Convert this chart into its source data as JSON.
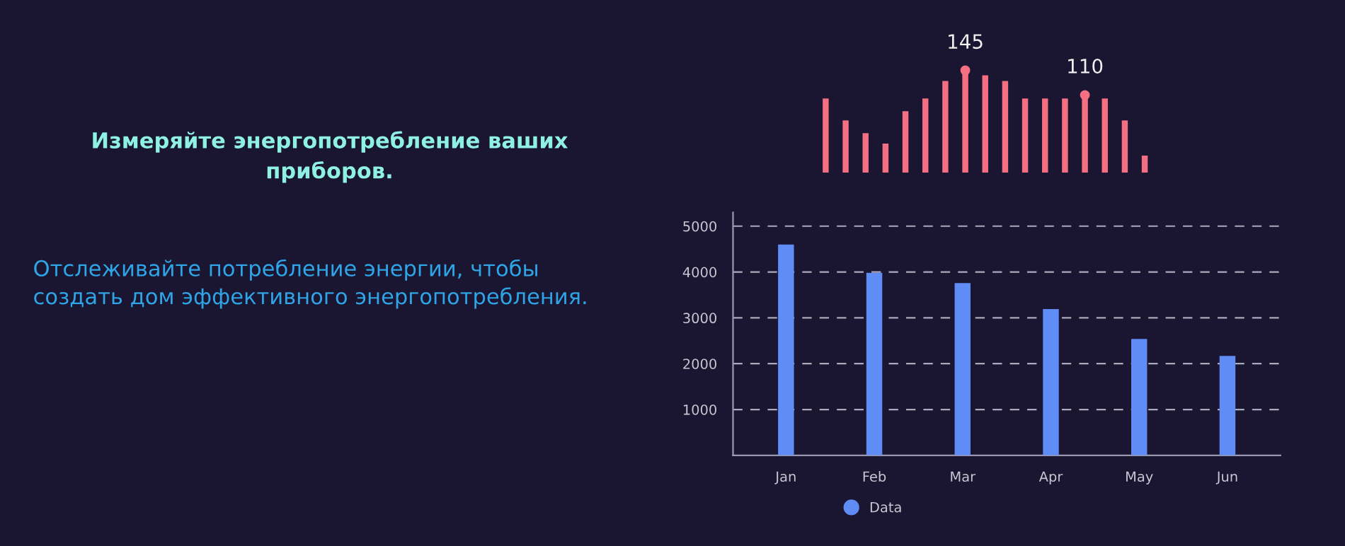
{
  "chart_data": [
    {
      "type": "other",
      "title": "Измеряйте энергопотребление ваших\nприборов.",
      "annotations": [
        "Отслеживайте потребление энергии, чтобы\nсоздать дом эффективного энергопотребления."
      ]
    },
    {
      "type": "bar",
      "categories": [
        null,
        null,
        null,
        null,
        null,
        null,
        null,
        null,
        null,
        null,
        null,
        null,
        null,
        null,
        null,
        null,
        null
      ],
      "series": [
        {
          "color": "#f56f82",
          "values": [
            105,
            74,
            56,
            41,
            87,
            105,
            130,
            145,
            138,
            130,
            105,
            105,
            105,
            110,
            105,
            74,
            24
          ],
          "value_labels": [
            null,
            null,
            null,
            null,
            null,
            null,
            null,
            "145",
            null,
            null,
            null,
            null,
            null,
            "110",
            null,
            null,
            null
          ]
        }
      ],
      "tick_labels": false,
      "grid": false,
      "legend": false
    },
    {
      "type": "bar",
      "categories": [
        "Jan",
        "Feb",
        "Mar",
        "Apr",
        "May",
        "Jun"
      ],
      "series": [
        {
          "name": "Data",
          "color": "#5f8cf5",
          "values": [
            4600,
            3980,
            3760,
            3190,
            2540,
            2170
          ]
        }
      ],
      "ylim": [
        0,
        5300
      ],
      "yticks": [
        1000,
        2000,
        3000,
        4000,
        5000
      ],
      "grid": "y",
      "legend": "bottom"
    }
  ]
}
